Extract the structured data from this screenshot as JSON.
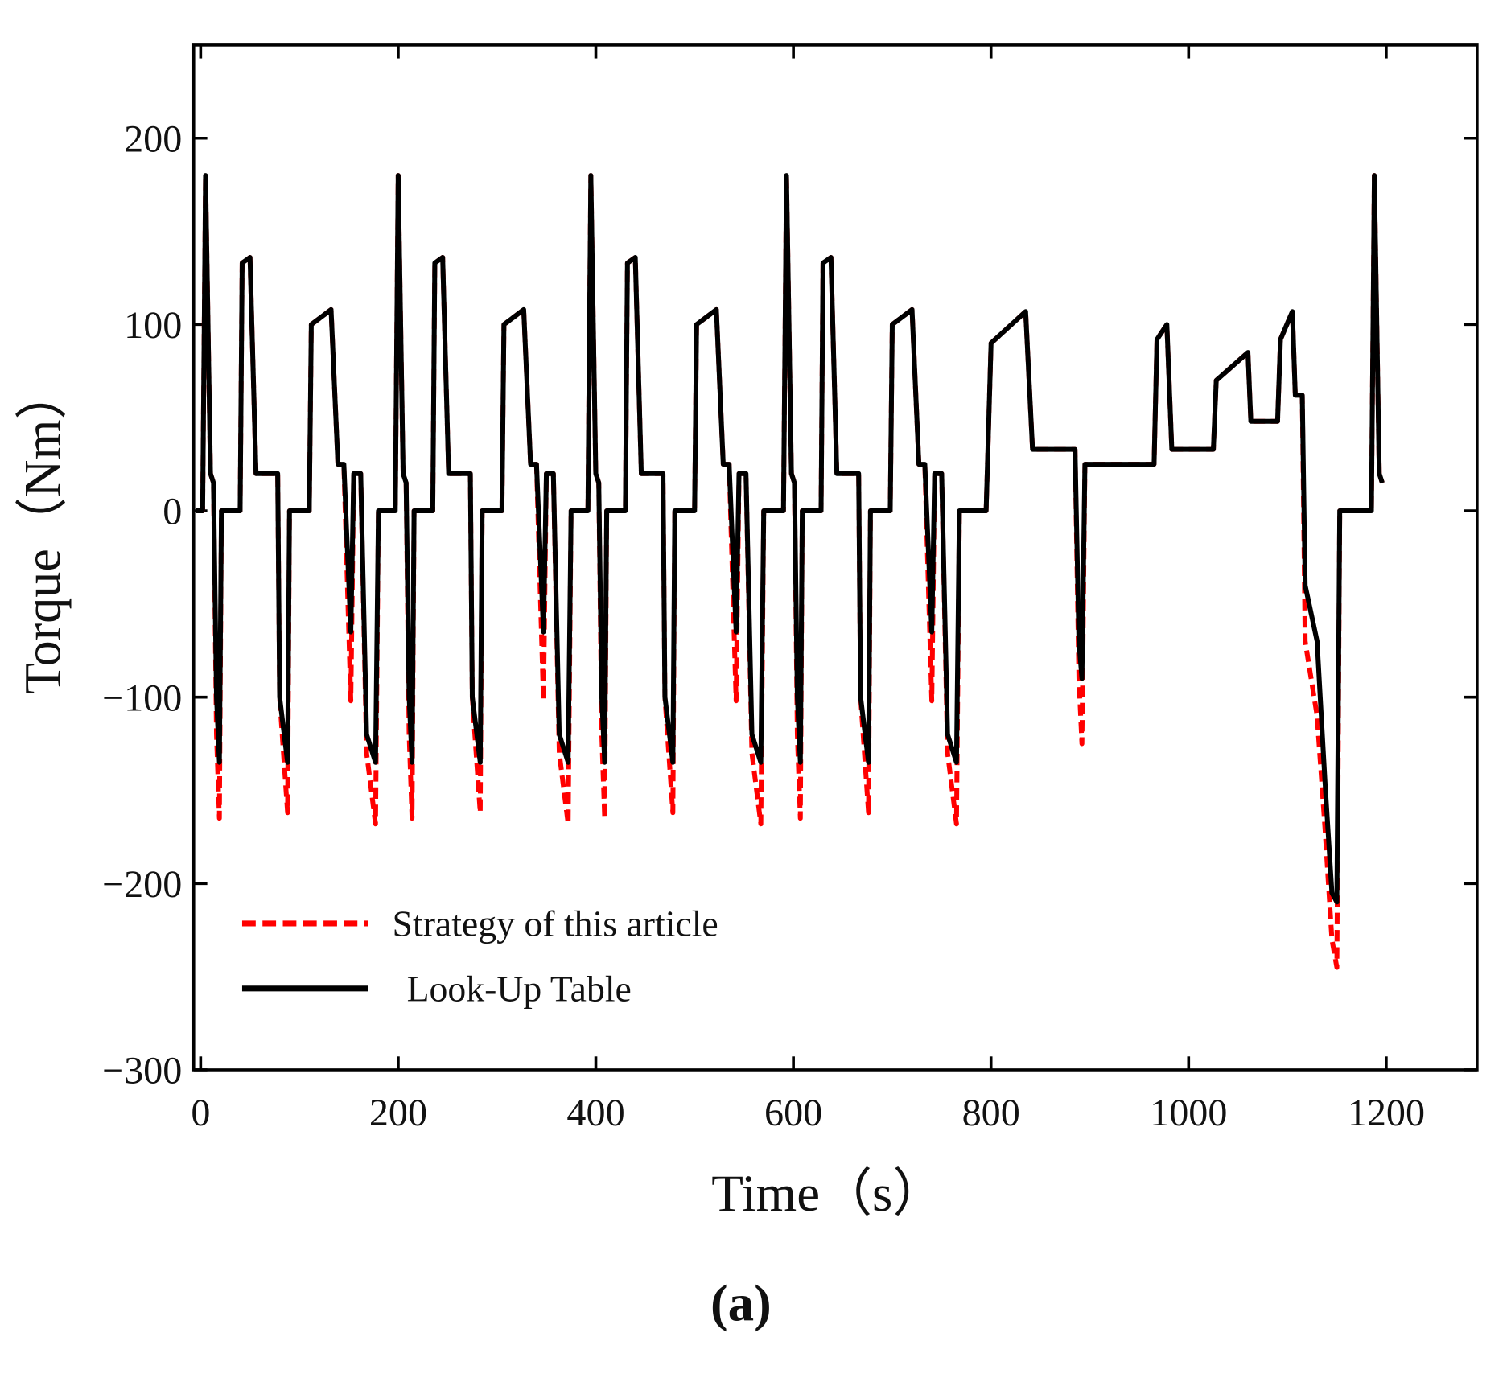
{
  "chart_data": {
    "type": "line",
    "xlabel": "Time（s）",
    "ylabel": "Torque（Nm）",
    "caption": "(a)",
    "x": [
      -5,
      2,
      5,
      10,
      13,
      16,
      19,
      21,
      40,
      42,
      50,
      56,
      78,
      80,
      88,
      90,
      110,
      112,
      132,
      139,
      145,
      152,
      155,
      162,
      168,
      177,
      180,
      197,
      200,
      205,
      208,
      211,
      214,
      216,
      235,
      237,
      245,
      251,
      273,
      275,
      283,
      285,
      305,
      307,
      327,
      334,
      340,
      347,
      350,
      357,
      363,
      372,
      375,
      392,
      395,
      400,
      403,
      406,
      409,
      411,
      430,
      432,
      440,
      446,
      468,
      470,
      478,
      480,
      500,
      502,
      522,
      529,
      535,
      542,
      545,
      552,
      558,
      567,
      570,
      590,
      593,
      598,
      601,
      604,
      607,
      609,
      628,
      630,
      638,
      644,
      666,
      668,
      676,
      678,
      698,
      700,
      720,
      727,
      733,
      740,
      743,
      750,
      756,
      765,
      768,
      795,
      800,
      835,
      842,
      885,
      889,
      892,
      895,
      965,
      968,
      978,
      983,
      1025,
      1028,
      1060,
      1063,
      1090,
      1093,
      1105,
      1108,
      1115,
      1118,
      1130,
      1138,
      1145,
      1150,
      1153,
      1185,
      1188,
      1193,
      1196
    ],
    "series": [
      {
        "name": "Strategy of this article",
        "color": "#ff0000",
        "dashed": true,
        "values": [
          0,
          0,
          180,
          20,
          15,
          -120,
          -165,
          0,
          0,
          133,
          136,
          20,
          20,
          -100,
          -162,
          0,
          0,
          100,
          108,
          25,
          25,
          -102,
          20,
          20,
          -130,
          -168,
          0,
          0,
          180,
          20,
          15,
          -120,
          -165,
          0,
          0,
          133,
          136,
          20,
          20,
          -100,
          -162,
          0,
          0,
          100,
          108,
          25,
          25,
          -102,
          20,
          20,
          -130,
          -168,
          0,
          0,
          180,
          20,
          15,
          -120,
          -165,
          0,
          0,
          133,
          136,
          20,
          20,
          -100,
          -162,
          0,
          0,
          100,
          108,
          25,
          25,
          -102,
          20,
          20,
          -130,
          -168,
          0,
          0,
          180,
          20,
          15,
          -120,
          -165,
          0,
          0,
          133,
          136,
          20,
          20,
          -100,
          -162,
          0,
          0,
          100,
          108,
          25,
          25,
          -102,
          20,
          20,
          -130,
          -168,
          0,
          0,
          90,
          107,
          33,
          33,
          -90,
          -125,
          25,
          25,
          92,
          100,
          33,
          33,
          70,
          85,
          48,
          48,
          92,
          107,
          62,
          62,
          -70,
          -110,
          -170,
          -230,
          -245,
          0,
          0,
          180,
          20,
          15
        ]
      },
      {
        "name": "Look-Up Table",
        "color": "#000000",
        "dashed": false,
        "values": [
          0,
          0,
          180,
          20,
          15,
          -100,
          -135,
          0,
          0,
          133,
          136,
          20,
          20,
          -100,
          -135,
          0,
          0,
          100,
          108,
          25,
          25,
          -65,
          20,
          20,
          -120,
          -135,
          0,
          0,
          180,
          20,
          15,
          -100,
          -135,
          0,
          0,
          133,
          136,
          20,
          20,
          -100,
          -135,
          0,
          0,
          100,
          108,
          25,
          25,
          -65,
          20,
          20,
          -120,
          -135,
          0,
          0,
          180,
          20,
          15,
          -100,
          -135,
          0,
          0,
          133,
          136,
          20,
          20,
          -100,
          -135,
          0,
          0,
          100,
          108,
          25,
          25,
          -65,
          20,
          20,
          -120,
          -135,
          0,
          0,
          180,
          20,
          15,
          -100,
          -135,
          0,
          0,
          133,
          136,
          20,
          20,
          -100,
          -135,
          0,
          0,
          100,
          108,
          25,
          25,
          -65,
          20,
          20,
          -120,
          -135,
          0,
          0,
          90,
          107,
          33,
          33,
          -70,
          -90,
          25,
          25,
          92,
          100,
          33,
          33,
          70,
          85,
          48,
          48,
          92,
          107,
          62,
          62,
          -40,
          -70,
          -145,
          -205,
          -210,
          0,
          0,
          180,
          20,
          15
        ]
      }
    ],
    "xlim": [
      -7,
      1292
    ],
    "xticks": [
      0,
      200,
      400,
      600,
      800,
      1000,
      1200
    ],
    "ylim": [
      -300,
      250
    ],
    "yticks": [
      {
        "value": -300,
        "label": "−300"
      },
      {
        "value": -200,
        "label": "−200"
      },
      {
        "value": -100,
        "label": "−100"
      },
      0,
      100,
      200
    ],
    "legend": "lower left",
    "grid": false
  }
}
